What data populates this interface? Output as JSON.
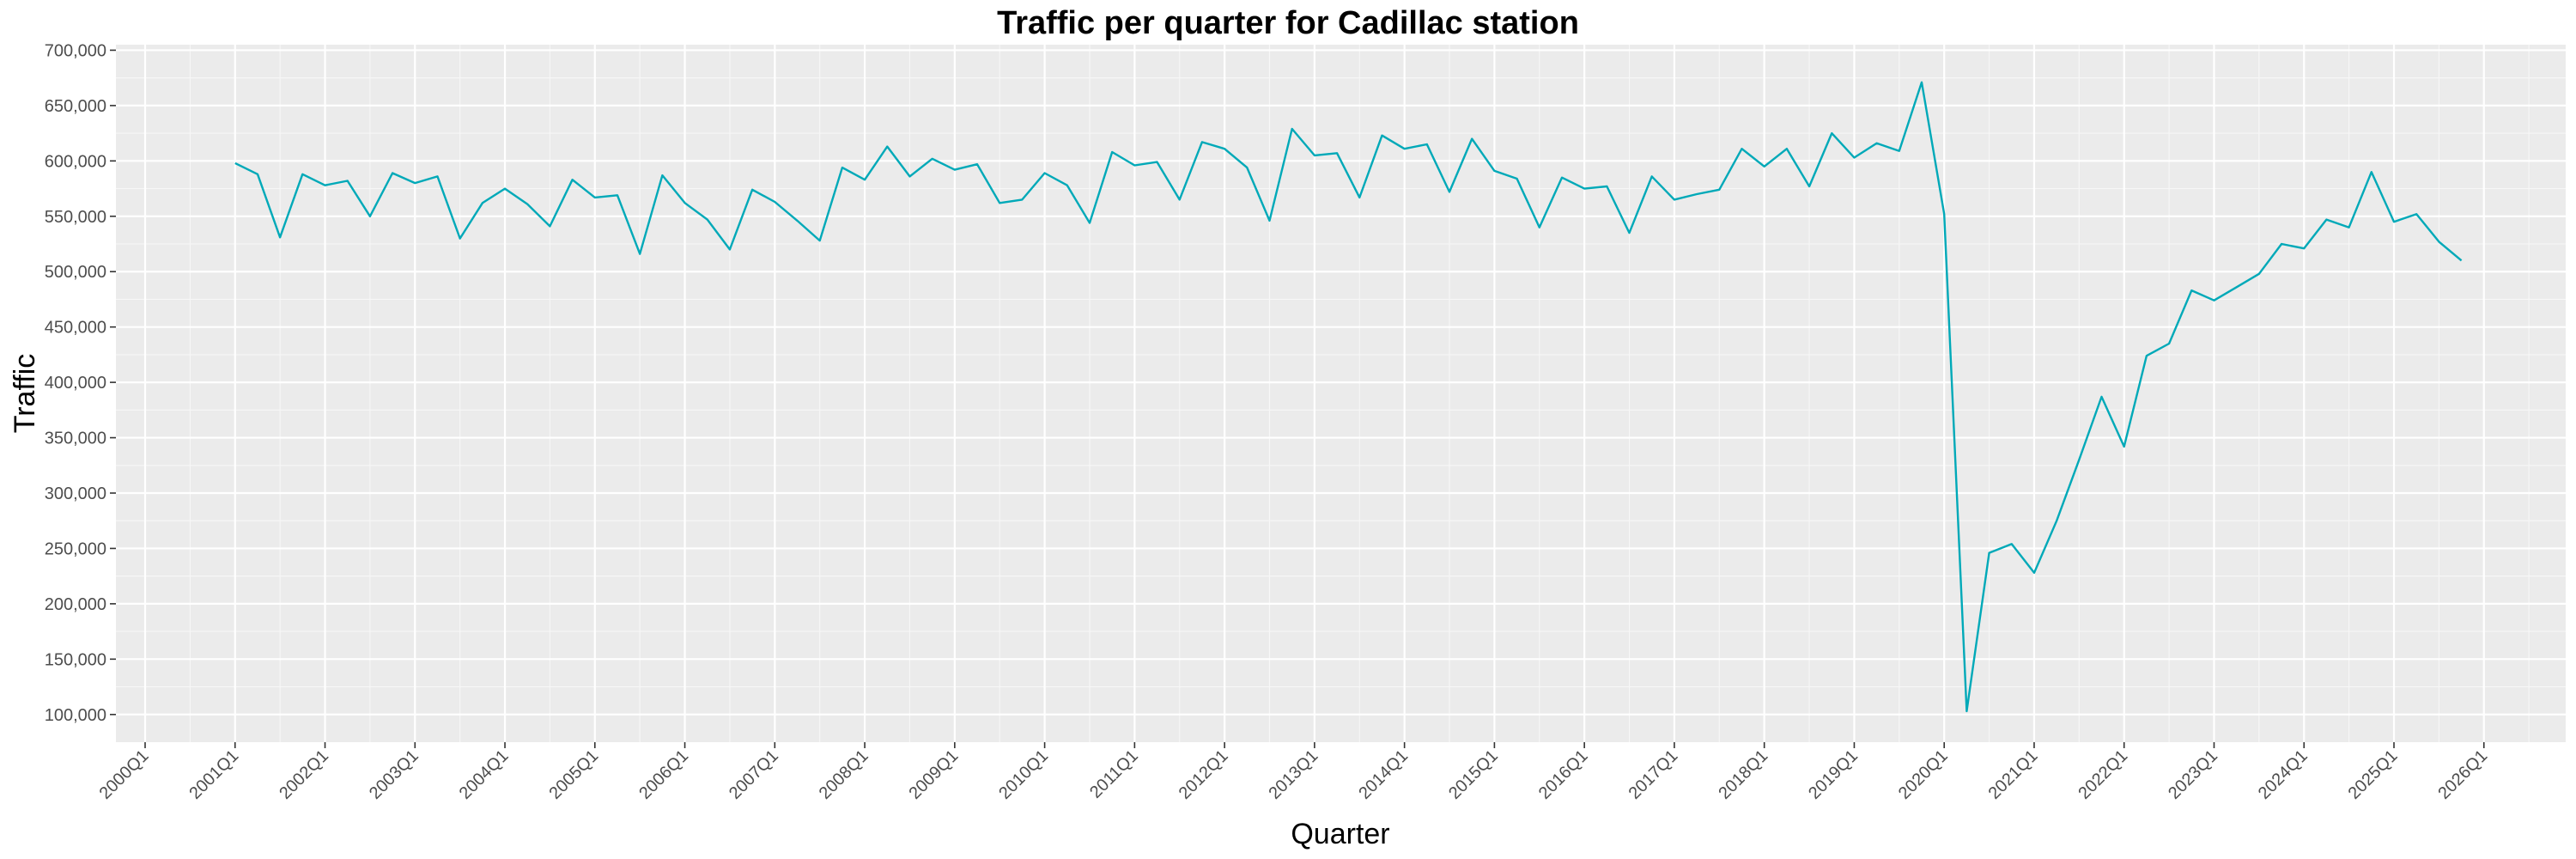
{
  "chart_data": {
    "type": "line",
    "title": "Traffic per quarter for Cadillac station",
    "xlabel": "Quarter",
    "ylabel": "Traffic",
    "ylim": [
      75000,
      705000
    ],
    "yticks": [
      100000,
      150000,
      200000,
      250000,
      300000,
      350000,
      400000,
      450000,
      500000,
      550000,
      600000,
      650000,
      700000
    ],
    "ytick_labels": [
      "100,000",
      "150,000",
      "200,000",
      "250,000",
      "300,000",
      "350,000",
      "400,000",
      "450,000",
      "500,000",
      "550,000",
      "600,000",
      "650,000",
      "700,000"
    ],
    "xtick_labels": [
      "2000Q1",
      "2001Q1",
      "2002Q1",
      "2003Q1",
      "2004Q1",
      "2005Q1",
      "2006Q1",
      "2007Q1",
      "2008Q1",
      "2009Q1",
      "2010Q1",
      "2011Q1",
      "2012Q1",
      "2013Q1",
      "2014Q1",
      "2015Q1",
      "2016Q1",
      "2017Q1",
      "2018Q1",
      "2019Q1",
      "2020Q1",
      "2021Q1",
      "2022Q1",
      "2023Q1",
      "2024Q1",
      "2025Q1",
      "2026Q1"
    ],
    "grid": true,
    "line_color": "#00A9B8",
    "panel_color": "#EBEBEB",
    "series": [
      {
        "x": [
          "2001Q1",
          "2001Q2",
          "2001Q3",
          "2001Q4",
          "2002Q1",
          "2002Q2",
          "2002Q3",
          "2002Q4",
          "2003Q1",
          "2003Q2",
          "2003Q3",
          "2003Q4",
          "2004Q1",
          "2004Q2",
          "2004Q3",
          "2004Q4",
          "2005Q1",
          "2005Q2",
          "2005Q3",
          "2005Q4",
          "2006Q1",
          "2006Q2",
          "2006Q3",
          "2006Q4",
          "2007Q1",
          "2007Q2",
          "2007Q3",
          "2007Q4",
          "2008Q1",
          "2008Q2",
          "2008Q3",
          "2008Q4",
          "2009Q1",
          "2009Q2",
          "2009Q3",
          "2009Q4",
          "2010Q1",
          "2010Q2",
          "2010Q3",
          "2010Q4",
          "2011Q1",
          "2011Q2",
          "2011Q3",
          "2011Q4",
          "2012Q1",
          "2012Q2",
          "2012Q3",
          "2012Q4",
          "2013Q1",
          "2013Q2",
          "2013Q3",
          "2013Q4",
          "2014Q1",
          "2014Q2",
          "2014Q3",
          "2014Q4",
          "2015Q1",
          "2015Q2",
          "2015Q3",
          "2015Q4",
          "2016Q1",
          "2016Q2",
          "2016Q3",
          "2016Q4",
          "2017Q1",
          "2017Q2",
          "2017Q3",
          "2017Q4",
          "2018Q1",
          "2018Q2",
          "2018Q3",
          "2018Q4",
          "2019Q1",
          "2019Q2",
          "2019Q3",
          "2019Q4",
          "2020Q1",
          "2020Q2",
          "2020Q3",
          "2020Q4",
          "2021Q1",
          "2021Q2",
          "2021Q3",
          "2021Q4",
          "2022Q1",
          "2022Q2",
          "2022Q3",
          "2022Q4",
          "2023Q1",
          "2023Q2",
          "2023Q3",
          "2023Q4",
          "2024Q1",
          "2024Q2",
          "2024Q3",
          "2024Q4",
          "2025Q1",
          "2025Q2",
          "2025Q3",
          "2025Q4"
        ],
        "values": [
          598000,
          588000,
          531000,
          588000,
          578000,
          582000,
          550000,
          589000,
          580000,
          586000,
          530000,
          562000,
          575000,
          561000,
          541000,
          583000,
          567000,
          569000,
          516000,
          587000,
          562000,
          547000,
          520000,
          574000,
          563000,
          546000,
          528000,
          594000,
          583000,
          613000,
          586000,
          602000,
          592000,
          597000,
          562000,
          565000,
          589000,
          578000,
          544000,
          608000,
          596000,
          599000,
          565000,
          617000,
          611000,
          594000,
          546000,
          629000,
          605000,
          607000,
          567000,
          623000,
          611000,
          615000,
          572000,
          620000,
          591000,
          584000,
          540000,
          585000,
          575000,
          577000,
          535000,
          586000,
          565000,
          570000,
          574000,
          611000,
          595000,
          611000,
          577000,
          625000,
          603000,
          616000,
          609000,
          671000,
          552000,
          103000,
          246000,
          254000,
          228000,
          275000,
          330000,
          387000,
          342000,
          424000,
          435000,
          483000,
          474000,
          486000,
          498000,
          525000,
          521000,
          547000,
          540000,
          590000,
          545000,
          552000,
          527000,
          510000
        ]
      }
    ]
  }
}
